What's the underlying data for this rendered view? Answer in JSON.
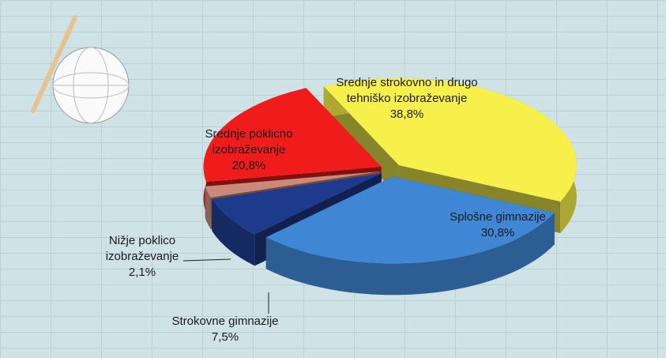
{
  "chart_data": {
    "type": "pie",
    "categories": [
      "Srednje strokovno in drugo tehniško izobraževanje",
      "Splošne gimnazije",
      "Strokovne gimnazije",
      "Nižje poklico izobraževanje",
      "Srednje poklicno izobraževanje"
    ],
    "values": [
      38.8,
      30.8,
      7.5,
      2.1,
      20.8
    ],
    "value_labels": [
      "38,8%",
      "30,8%",
      "7,5%",
      "2,1%",
      "20,8%"
    ],
    "colors": [
      "#f7f04a",
      "#3f86d4",
      "#1e3a8c",
      "#c98a7a",
      "#f01c1c"
    ]
  }
}
